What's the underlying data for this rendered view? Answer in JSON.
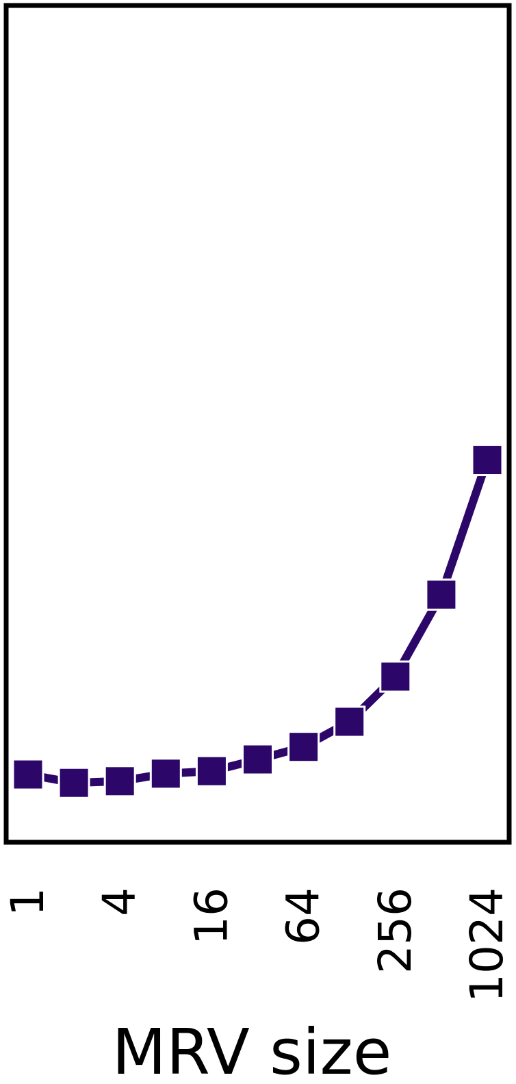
{
  "chart_data": {
    "type": "line",
    "title": "",
    "xlabel": "MRV size",
    "ylabel": "",
    "x_scale": "log2",
    "x_ticks": [
      1,
      4,
      16,
      64,
      256,
      1024
    ],
    "x_tick_labels": [
      "1",
      "4",
      "16",
      "64",
      "256",
      "1024"
    ],
    "y_ticks": [],
    "grid": false,
    "legend": "none",
    "series": [
      {
        "x": [
          1,
          2,
          4,
          8,
          16,
          32,
          64,
          128,
          256,
          512,
          1024
        ],
        "y": [
          0.081,
          0.071,
          0.073,
          0.082,
          0.085,
          0.099,
          0.114,
          0.144,
          0.198,
          0.296,
          0.457
        ],
        "color": "#2c0669",
        "marker": "square",
        "line_style": "dashed"
      }
    ],
    "xlim": [
      1,
      1024
    ],
    "ylim": [
      0,
      1
    ]
  }
}
